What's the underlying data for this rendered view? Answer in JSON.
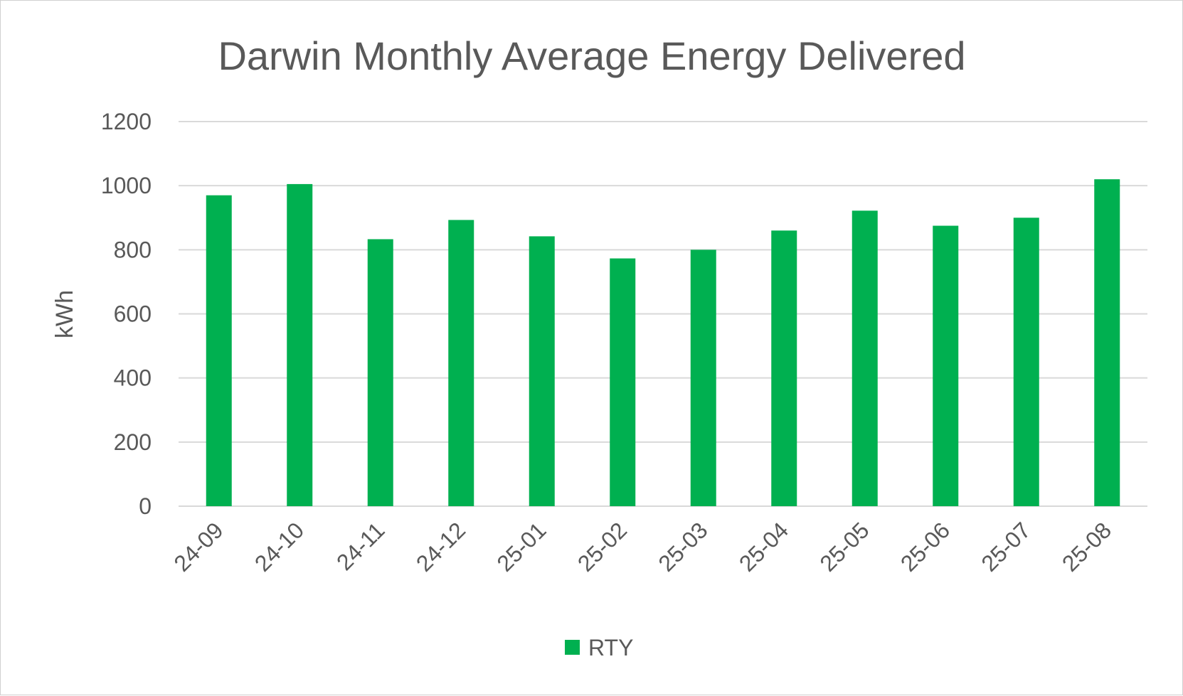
{
  "chart_data": {
    "type": "bar",
    "title": "Darwin Monthly Average Energy Delivered",
    "xlabel": "",
    "ylabel": "kWh",
    "ylim": [
      0,
      1200
    ],
    "yticks": [
      0,
      200,
      400,
      600,
      800,
      1000,
      1200
    ],
    "grid": true,
    "legend_position": "bottom",
    "categories": [
      "24-09",
      "24-10",
      "24-11",
      "24-12",
      "25-01",
      "25-02",
      "25-03",
      "25-04",
      "25-05",
      "25-06",
      "25-07",
      "25-08"
    ],
    "series": [
      {
        "name": "RTY",
        "color": "#00b050",
        "values": [
          970,
          1005,
          833,
          893,
          842,
          773,
          800,
          860,
          922,
          875,
          900,
          1020
        ]
      }
    ]
  }
}
